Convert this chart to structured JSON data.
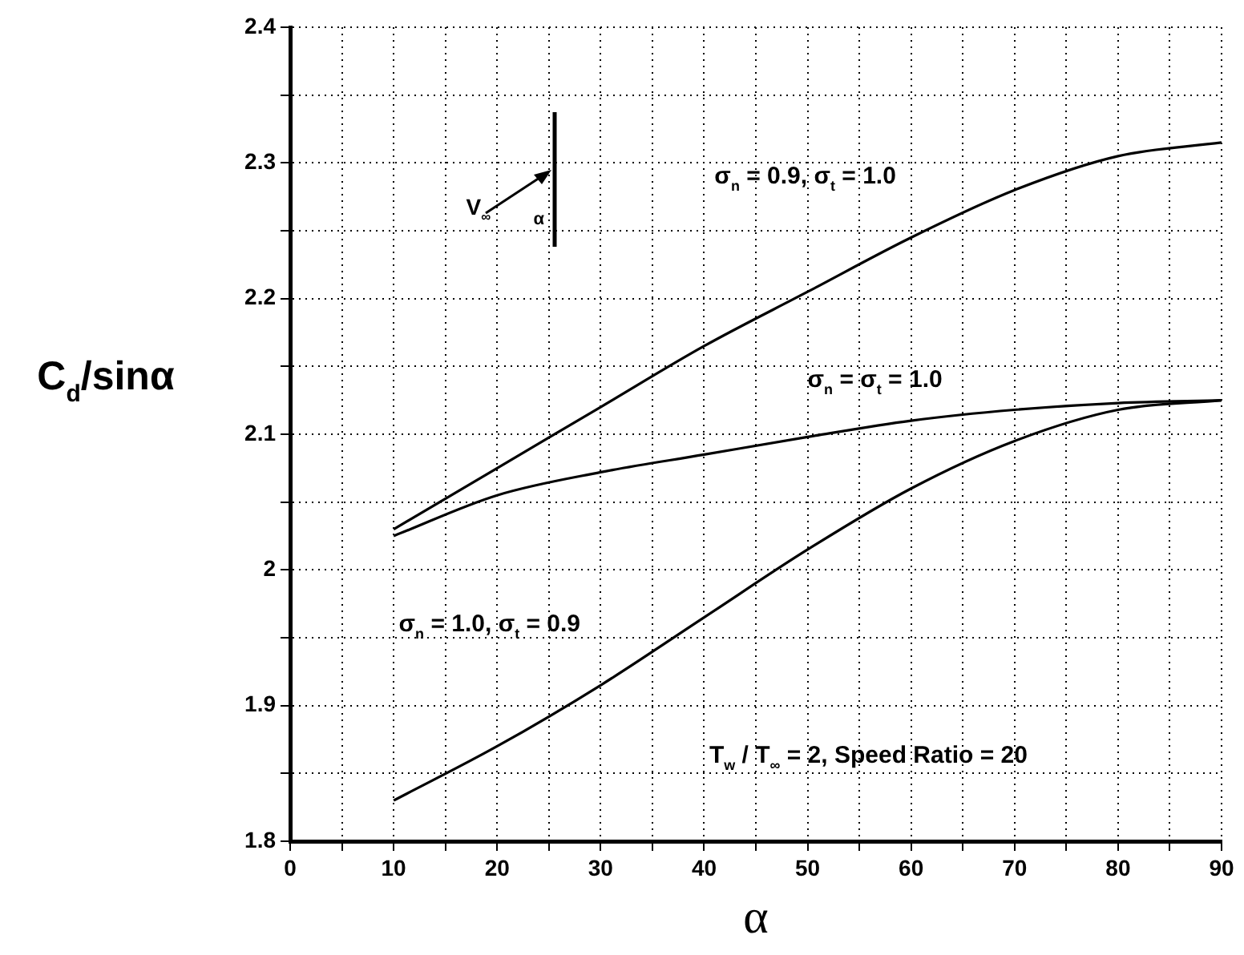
{
  "chart_data": {
    "type": "line",
    "xlabel": "α",
    "ylabel": "C$_{d}$/sinα",
    "xlim": [
      0,
      90
    ],
    "xticks": [
      0,
      {
        "value": 5,
        "label": null
      },
      10,
      {
        "value": 15,
        "label": null
      },
      20,
      {
        "value": 25,
        "label": null
      },
      30,
      {
        "value": 35,
        "label": null
      },
      40,
      {
        "value": 45,
        "label": null
      },
      50,
      {
        "value": 55,
        "label": null
      },
      60,
      {
        "value": 65,
        "label": null
      },
      70,
      {
        "value": 75,
        "label": null
      },
      80,
      {
        "value": 85,
        "label": null
      },
      90
    ],
    "ylim": [
      1.8,
      2.4
    ],
    "yticks": [
      1.8,
      {
        "value": 1.85,
        "label": null
      },
      1.9,
      {
        "value": 1.95,
        "label": null
      },
      2.0,
      {
        "value": 2.05,
        "label": null
      },
      2.1,
      {
        "value": 2.15,
        "label": null
      },
      2.2,
      {
        "value": 2.25,
        "label": null
      },
      2.3,
      {
        "value": 2.35,
        "label": null
      },
      2.4
    ],
    "x": [
      10,
      20,
      30,
      40,
      50,
      60,
      70,
      80,
      90
    ],
    "series": [
      {
        "name": "σ$_{n}$ = 0.9, σ$_{t}$ = 1.0",
        "color": "#000000",
        "values": [
          2.03,
          2.075,
          2.12,
          2.165,
          2.205,
          2.245,
          2.28,
          2.305,
          2.315
        ]
      },
      {
        "name": "σ$_{n}$ = σ$_{t}$ = 1.0",
        "color": "#000000",
        "values": [
          2.025,
          2.055,
          2.072,
          2.085,
          2.098,
          2.11,
          2.118,
          2.123,
          2.125
        ]
      },
      {
        "name": "σ$_{n}$ = 1.0, σ$_{t}$ = 0.9",
        "color": "#000000",
        "values": [
          1.83,
          1.87,
          1.915,
          1.965,
          2.015,
          2.06,
          2.095,
          2.118,
          2.125
        ]
      }
    ],
    "grid": true,
    "marker": "none",
    "annotations": [
      "V$_{∞}$",
      "α",
      "T$_{w}$ / T$_{∞}$ = 2, Speed Ratio = 20"
    ]
  }
}
